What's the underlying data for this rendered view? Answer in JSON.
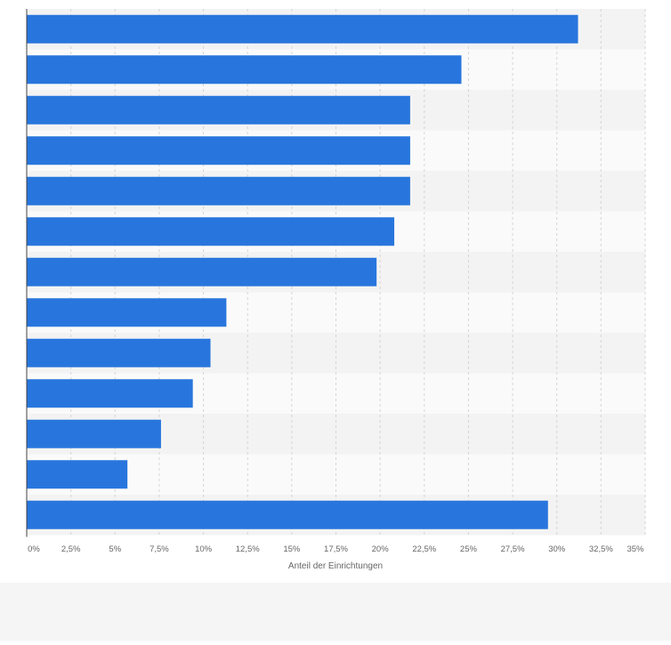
{
  "colors": {
    "bar": "#2876dd",
    "band_light": "#fafafa",
    "band_dark": "#f3f3f3",
    "grid": "#d6d6d6",
    "axis": "#444444",
    "tick_label": "#666666",
    "footer_bg": "#f5f5f5"
  },
  "chart_data": {
    "type": "bar",
    "orientation": "horizontal",
    "categories": [
      "",
      "",
      "",
      "",
      "",
      "",
      "",
      "",
      "",
      "",
      "",
      "",
      ""
    ],
    "values": [
      31.2,
      24.6,
      21.7,
      21.7,
      21.7,
      20.8,
      19.8,
      11.3,
      10.4,
      9.4,
      7.6,
      5.7,
      29.5
    ],
    "xlabel": "Anteil der Einrichtungen",
    "xlim": [
      0,
      35
    ],
    "xticks": [
      0,
      2.5,
      5,
      7.5,
      10,
      12.5,
      15,
      17.5,
      20,
      22.5,
      25,
      27.5,
      30,
      32.5,
      35
    ],
    "xtick_labels": [
      "0%",
      "2,5%",
      "5%",
      "7,5%",
      "10%",
      "12,5%",
      "15%",
      "17,5%",
      "20%",
      "22,5%",
      "25%",
      "27,5%",
      "30%",
      "32,5%",
      "35%"
    ],
    "grid": true,
    "legend": "none"
  }
}
